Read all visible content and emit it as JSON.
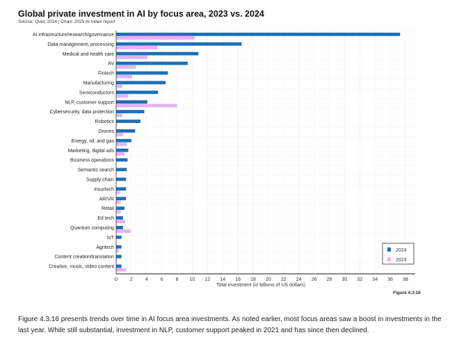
{
  "chart_data": {
    "type": "bar",
    "orientation": "horizontal",
    "title": "Global private investment in AI by focus area, 2023 vs. 2024",
    "subtitle": "Source: Quid, 2024 | Chart: 2025 AI Index report",
    "xlabel": "Total investment (in billions of US dollars)",
    "xlim": [
      0,
      38
    ],
    "xticks": [
      0,
      2,
      4,
      6,
      8,
      10,
      12,
      14,
      16,
      18,
      20,
      22,
      24,
      26,
      28,
      30,
      32,
      34,
      36,
      38
    ],
    "grid": true,
    "legend_position": "bottom-right",
    "categories": [
      "AI infrastructure/research/governance",
      "Data management, processing",
      "Medical and health care",
      "AV",
      "Fintech",
      "Manufacturing",
      "Semiconductors",
      "NLP, customer support",
      "Cybersecurity, data protection",
      "Robotics",
      "Drones",
      "Energy, oil, and gas",
      "Marketing, digital ads",
      "Business operations",
      "Semantic search",
      "Supply chain",
      "Insurtech",
      "AR/VR",
      "Retail",
      "Ed tech",
      "Quantum computing",
      "IoT",
      "Agritech",
      "Content creation/translation",
      "Creative, music, video content"
    ],
    "series": [
      {
        "name": "2024",
        "color": "#1f6fb5",
        "values": [
          37.3,
          16.5,
          10.8,
          9.4,
          6.8,
          6.5,
          5.5,
          4.1,
          3.7,
          3.2,
          2.5,
          2.0,
          1.6,
          1.5,
          1.4,
          1.3,
          1.3,
          1.3,
          1.1,
          0.9,
          0.9,
          0.7,
          0.7,
          0.7,
          0.7
        ]
      },
      {
        "name": "2023",
        "color": "#e2b3f7",
        "values": [
          10.3,
          5.4,
          4.1,
          2.6,
          2.1,
          0.8,
          1.6,
          8.0,
          0.8,
          0.1,
          0.9,
          1.4,
          1.1,
          0.05,
          0.02,
          0.02,
          0.5,
          0.6,
          0.6,
          1.2,
          1.9,
          0.02,
          0.35,
          0.1,
          1.3
        ]
      }
    ]
  },
  "figure_label": "Figure 4.3.16",
  "paragraph": "Figure 4.3.16 presents trends over time in AI focus area investments. As noted earlier, most focus areas saw a boost in investments in the last year. While still substantial, investment in NLP, customer support peaked in 2021 and has since then declined."
}
